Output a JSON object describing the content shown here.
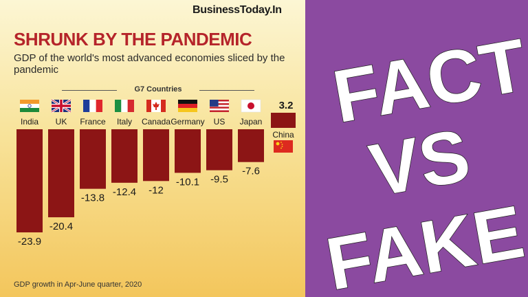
{
  "source": "BusinessToday.In",
  "chart_data": {
    "type": "bar",
    "title": "SHRUNK BY THE PANDEMIC",
    "subtitle": "GDP of the world's most advanced economies sliced by the pandemic",
    "group_label": "G7 Countries",
    "categories": [
      "India",
      "UK",
      "France",
      "Italy",
      "Canada",
      "Germany",
      "US",
      "Japan",
      "China"
    ],
    "values": [
      -23.9,
      -20.4,
      -13.8,
      -12.4,
      -12,
      -10.1,
      -9.5,
      -7.6,
      3.2
    ],
    "value_labels": [
      "-23.9",
      "-20.4",
      "-13.8",
      "-12.4",
      "-12",
      "-10.1",
      "-9.5",
      "-7.6",
      "3.2"
    ],
    "flag_icons": [
      "india-flag-icon",
      "uk-flag-icon",
      "france-flag-icon",
      "italy-flag-icon",
      "canada-flag-icon",
      "germany-flag-icon",
      "us-flag-icon",
      "japan-flag-icon",
      "china-flag-icon"
    ],
    "bar_color": "#8c1515",
    "footnote": "GDP growth in Apr-June quarter, 2020",
    "grid": false
  },
  "overlay": {
    "lines": [
      "FACT",
      "VS",
      "FAKE"
    ],
    "background_color": "#8b4aa0",
    "text_color": "#ffffff"
  }
}
